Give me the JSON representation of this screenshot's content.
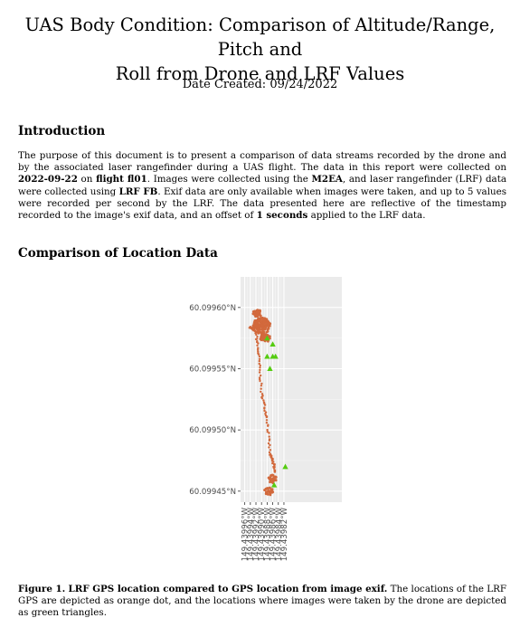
{
  "document": {
    "title_line1": "UAS Body Condition: Comparison of Altitude/Range, Pitch and",
    "title_line2": "Roll from Drone and LRF Values",
    "date_created": "Date Created: 09/24/2022"
  },
  "introduction": {
    "heading": "Introduction",
    "t1": "The purpose of this document is to present a comparison of data streams recorded by the drone and by the associated laser rangefinder during a UAS flight. The data in this report were collected on ",
    "date": "2022-09-22",
    "t2": " on ",
    "flight": "flight fl01",
    "t3": ". Images were collected using the ",
    "drone": "M2EA",
    "t4": ", and laser rangefinder (LRF) data were collected using ",
    "lrf": "LRF FB",
    "t5": ". Exif data are only available when images were taken, and up to 5 values were recorded per second by the LRF. The data presented here are reflective of the timestamp recorded to the image's exif data, and an offset of ",
    "offset": "1 seconds",
    "t6": " applied to the LRF data."
  },
  "location_section": {
    "heading": "Comparison of Location Data"
  },
  "chart_data": {
    "type": "scatter",
    "title": "",
    "xlabel": "",
    "ylabel": "",
    "xlim": [
      -149.439975,
      -149.439613
    ],
    "ylim": [
      0.099441,
      0.099625
    ],
    "x_tick_values": [
      -149.43996,
      -149.43994,
      -149.43992,
      -149.4399,
      -149.43988,
      -149.43986,
      -149.43984,
      -149.43982
    ],
    "x_tick_labels": [
      "149.43996°W",
      "149.43994°W",
      "149.43992°W",
      "149.43990°W",
      "149.43988°W",
      "149.43986°W",
      "149.43984°W",
      "149.43982°W"
    ],
    "y_tick_values": [
      0.0996,
      0.09955,
      0.0995,
      0.09945
    ],
    "y_tick_labels": [
      "60.09960°N",
      "60.09955°N",
      "60.09950°N",
      "60.09945°N"
    ],
    "grid": true,
    "legend": "none",
    "series": [
      {
        "marker": "dot",
        "color": "#D2693C"
      },
      {
        "marker": "triangle",
        "color": "#55CC11"
      }
    ],
    "lrf_path": [
      [
        -149.43994,
        0.099584
      ],
      [
        -149.43992,
        0.09958
      ],
      [
        -149.43991,
        0.09956
      ],
      [
        -149.4399,
        0.09953
      ],
      [
        -149.43988,
        0.09951
      ],
      [
        -149.43987,
        0.09948
      ],
      [
        -149.43986,
        0.099475
      ],
      [
        -149.43985,
        0.099465
      ]
    ],
    "lrf_cluster_center": [
      -149.4399,
      0.099585
    ],
    "lrf_clusters": [
      [
        -149.439915,
        0.099595
      ],
      [
        -149.43989,
        0.099575
      ],
      [
        -149.439885,
        0.099575
      ],
      [
        -149.43986,
        0.09946
      ],
      [
        -149.439875,
        0.09945
      ]
    ],
    "drone_points": [
      [
        -149.43986,
        0.09957
      ],
      [
        -149.43988,
        0.09956
      ],
      [
        -149.43985,
        0.09956
      ],
      [
        -149.43987,
        0.09955
      ],
      [
        -149.43986,
        0.09956
      ],
      [
        -149.43988,
        0.099575
      ],
      [
        -149.439855,
        0.099455
      ],
      [
        -149.439815,
        0.09947
      ]
    ]
  },
  "figure": {
    "label": "Figure 1.",
    "bold_caption": "LRF GPS location compared to GPS location from image exif.",
    "caption": " The locations of the LRF GPS are depicted as orange dot, and the locations where images were taken by the drone are depicted as green triangles."
  }
}
